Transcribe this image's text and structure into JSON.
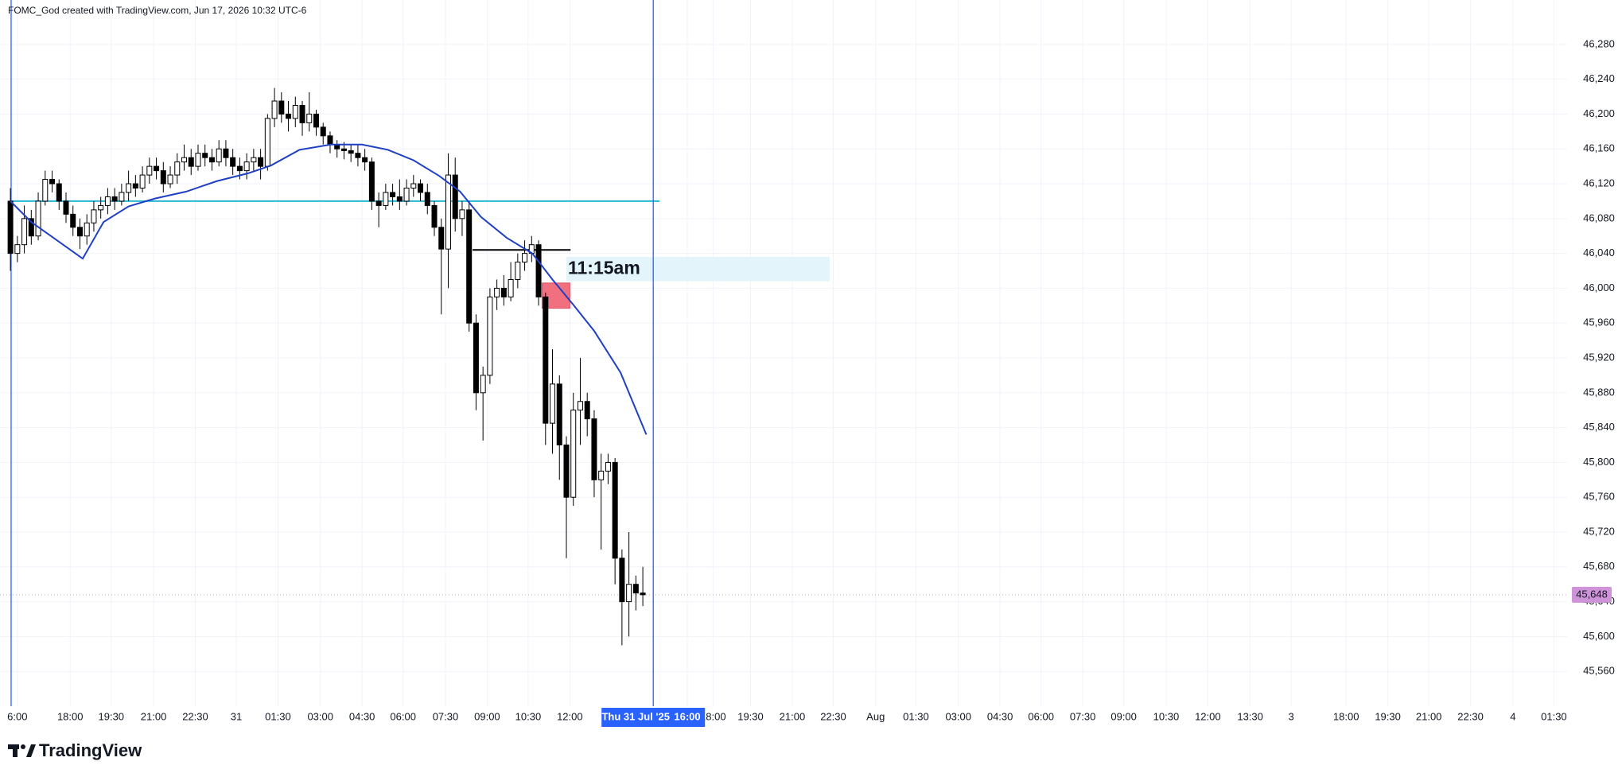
{
  "header": "FOMC_God created with TradingView.com, Jun 17, 2026 10:32 UTC-6",
  "footer": "TradingView",
  "chart_data": {
    "type": "candlestick",
    "xlim": [
      -2.5,
      223
    ],
    "ylim": [
      45520,
      46331
    ],
    "grid": true,
    "up_color": "#ffffff",
    "down_color": "#000000",
    "xticks": [
      {
        "value": 0,
        "label": "6:00"
      },
      {
        "value": 7.6,
        "label": "18:00"
      },
      {
        "value": 13.5,
        "label": "19:30"
      },
      {
        "value": 19.6,
        "label": "21:00"
      },
      {
        "value": 25.6,
        "label": "22:30"
      },
      {
        "value": 31.5,
        "label": "31"
      },
      {
        "value": 37.5,
        "label": "01:30"
      },
      {
        "value": 43.6,
        "label": "03:00"
      },
      {
        "value": 49.6,
        "label": "04:30"
      },
      {
        "value": 55.5,
        "label": "06:00"
      },
      {
        "value": 61.6,
        "label": "07:30"
      },
      {
        "value": 67.6,
        "label": "09:00"
      },
      {
        "value": 73.5,
        "label": "10:30"
      },
      {
        "value": 79.5,
        "label": "12:00"
      },
      {
        "value": 96.4,
        "label": "16:00"
      },
      {
        "value": 100.1,
        "label": "18:00"
      },
      {
        "value": 105.5,
        "label": "19:30"
      },
      {
        "value": 111.5,
        "label": "21:00"
      },
      {
        "value": 117.4,
        "label": "22:30"
      },
      {
        "value": 123.5,
        "label": "Aug"
      },
      {
        "value": 129.3,
        "label": "01:30"
      },
      {
        "value": 135.4,
        "label": "03:00"
      },
      {
        "value": 141.4,
        "label": "04:30"
      },
      {
        "value": 147.3,
        "label": "06:00"
      },
      {
        "value": 153.3,
        "label": "07:30"
      },
      {
        "value": 159.2,
        "label": "09:00"
      },
      {
        "value": 165.3,
        "label": "10:30"
      },
      {
        "value": 171.3,
        "label": "12:00"
      },
      {
        "value": 177.4,
        "label": "13:30"
      },
      {
        "value": 183.3,
        "label": "3"
      },
      {
        "value": 191.2,
        "label": "18:00"
      },
      {
        "value": 197.2,
        "label": "19:30"
      },
      {
        "value": 203.1,
        "label": "21:00"
      },
      {
        "value": 209.1,
        "label": "22:30"
      },
      {
        "value": 215.2,
        "label": "4"
      },
      {
        "value": 221.1,
        "label": "01:30"
      }
    ],
    "yticks": [
      {
        "value": 45560,
        "label": "45,560"
      },
      {
        "value": 45600,
        "label": "45,600"
      },
      {
        "value": 45640,
        "label": "45,640"
      },
      {
        "value": 45680,
        "label": "45,680"
      },
      {
        "value": 45720,
        "label": "45,720"
      },
      {
        "value": 45760,
        "label": "45,760"
      },
      {
        "value": 45800,
        "label": "45,800"
      },
      {
        "value": 45840,
        "label": "45,840"
      },
      {
        "value": 45880,
        "label": "45,880"
      },
      {
        "value": 45920,
        "label": "45,920"
      },
      {
        "value": 45960,
        "label": "45,960"
      },
      {
        "value": 46000,
        "label": "46,000"
      },
      {
        "value": 46040,
        "label": "46,040"
      },
      {
        "value": 46080,
        "label": "46,080"
      },
      {
        "value": 46120,
        "label": "46,120"
      },
      {
        "value": 46160,
        "label": "46,160"
      },
      {
        "value": 46200,
        "label": "46,200"
      },
      {
        "value": 46240,
        "label": "46,240"
      },
      {
        "value": 46280,
        "label": "46,280"
      }
    ],
    "x": [
      -1,
      0,
      1,
      2,
      3,
      4,
      5,
      6,
      7,
      8,
      9,
      10,
      11,
      12,
      13,
      14,
      15,
      16,
      17,
      18,
      19,
      20,
      21,
      22,
      23,
      24,
      25,
      26,
      27,
      28,
      29,
      30,
      31,
      32,
      33,
      34,
      35,
      36,
      37,
      38,
      39,
      40,
      41,
      42,
      43,
      44,
      45,
      46,
      47,
      48,
      49,
      50,
      51,
      52,
      53,
      54,
      55,
      56,
      57,
      58,
      59,
      60,
      61,
      62,
      63,
      64,
      65,
      66,
      67,
      68,
      69,
      70,
      71,
      72,
      73,
      74,
      75,
      76,
      77,
      78,
      79,
      80,
      81,
      82,
      83,
      84,
      85,
      86,
      87,
      88,
      89,
      90
    ],
    "open": [
      46100,
      46040,
      46050,
      46080,
      46060,
      46100,
      46125,
      46120,
      46100,
      46085,
      46070,
      46060,
      46075,
      46090,
      46095,
      46105,
      46100,
      46110,
      46120,
      46115,
      46130,
      46140,
      46135,
      46120,
      46130,
      46145,
      46150,
      46140,
      46155,
      46150,
      46145,
      46160,
      46150,
      46140,
      46135,
      46145,
      46150,
      46140,
      46195,
      46215,
      46200,
      46195,
      46210,
      46190,
      46200,
      46185,
      46175,
      46165,
      46160,
      46158,
      46155,
      46150,
      46145,
      46100,
      46095,
      46110,
      46105,
      46100,
      46115,
      46120,
      46110,
      46095,
      46070,
      46045,
      46130,
      46080,
      46090,
      45960,
      45880,
      45900,
      45990,
      46000,
      45990,
      46010,
      46030,
      46040,
      46050,
      45990,
      45845,
      45890,
      45820,
      45760,
      45860,
      45870,
      45850,
      45780,
      45790,
      45800,
      45690,
      45640,
      45660,
      45650
    ],
    "high": [
      46115,
      46060,
      46095,
      46090,
      46110,
      46135,
      46135,
      46125,
      46110,
      46095,
      46080,
      46085,
      46100,
      46105,
      46115,
      46115,
      46120,
      46135,
      46130,
      46140,
      46150,
      46150,
      46145,
      46140,
      46155,
      46165,
      46160,
      46165,
      46165,
      46160,
      46170,
      46170,
      46160,
      46150,
      46155,
      46160,
      46160,
      46200,
      46230,
      46225,
      46215,
      46220,
      46215,
      46225,
      46205,
      46190,
      46180,
      46170,
      46168,
      46165,
      46165,
      46160,
      46150,
      46110,
      46120,
      46120,
      46125,
      46125,
      46130,
      46125,
      46120,
      46100,
      46080,
      46155,
      46150,
      46100,
      46100,
      45970,
      45910,
      46000,
      46010,
      46015,
      46030,
      46040,
      46055,
      46060,
      46055,
      45995,
      45930,
      45900,
      45830,
      45880,
      45920,
      45880,
      45860,
      45810,
      45810,
      45805,
      45700,
      45720,
      45670,
      45680
    ],
    "low": [
      46020,
      46030,
      46040,
      46050,
      46055,
      46095,
      46110,
      46090,
      46075,
      46060,
      46045,
      46050,
      46065,
      46080,
      46085,
      46090,
      46095,
      46100,
      46105,
      46110,
      46120,
      46125,
      46110,
      46115,
      46120,
      46135,
      46130,
      46135,
      46140,
      46135,
      46140,
      46140,
      46130,
      46125,
      46125,
      46135,
      46125,
      46135,
      46185,
      46190,
      46180,
      46185,
      46175,
      46180,
      46175,
      46165,
      46155,
      46150,
      46148,
      46145,
      46140,
      46135,
      46090,
      46070,
      46090,
      46095,
      46090,
      46095,
      46105,
      46100,
      46085,
      46060,
      45970,
      46000,
      46065,
      46060,
      45950,
      45860,
      45825,
      45890,
      45975,
      45980,
      45985,
      46000,
      46020,
      46030,
      45980,
      45820,
      45810,
      45780,
      45690,
      45750,
      45820,
      45830,
      45760,
      45700,
      45775,
      45660,
      45590,
      45600,
      45630,
      45635
    ],
    "close": [
      46040,
      46050,
      46080,
      46060,
      46100,
      46125,
      46120,
      46100,
      46085,
      46070,
      46060,
      46075,
      46090,
      46095,
      46105,
      46100,
      46110,
      46120,
      46115,
      46130,
      46140,
      46135,
      46120,
      46130,
      46145,
      46150,
      46140,
      46155,
      46150,
      46145,
      46160,
      46150,
      46140,
      46135,
      46145,
      46150,
      46140,
      46195,
      46215,
      46200,
      46195,
      46210,
      46190,
      46200,
      46185,
      46175,
      46165,
      46160,
      46158,
      46155,
      46150,
      46145,
      46100,
      46095,
      46110,
      46105,
      46100,
      46115,
      46120,
      46110,
      46095,
      46070,
      46045,
      46130,
      46080,
      46090,
      45960,
      45880,
      45900,
      45990,
      46000,
      45990,
      46010,
      46030,
      46040,
      46050,
      45990,
      45845,
      45890,
      45820,
      45760,
      45860,
      45870,
      45850,
      45780,
      45790,
      45800,
      45690,
      45640,
      45660,
      45650,
      45648
    ],
    "moving_average": {
      "color": "#1f3fc4",
      "x": [
        -1,
        2,
        5.7,
        9.4,
        12.4,
        16,
        19.8,
        24.3,
        28.7,
        33.2,
        36.5,
        40.6,
        45.1,
        49.6,
        53.3,
        57,
        60.7,
        63.7,
        66.7,
        70.4,
        74.1,
        77,
        80,
        83,
        86.8,
        90.5
      ],
      "values": [
        46100,
        46076,
        46055,
        46034,
        46076,
        46094,
        46103,
        46111,
        46123,
        46132,
        46141,
        46159,
        46165,
        46165,
        46159,
        46147,
        46129,
        46111,
        46082,
        46058,
        46040,
        46010,
        45981,
        45951,
        45903,
        45832
      ]
    },
    "hlines": [
      {
        "value": 46100,
        "x": [
          -1,
          92.4
        ],
        "color": "#26b6d4"
      },
      {
        "value": 46044,
        "x": [
          65.5,
          79.6
        ],
        "color": "#000000"
      }
    ],
    "boxes": [
      {
        "y": [
          46036,
          46008
        ],
        "x": [
          79,
          116.9
        ],
        "color": "#e3f5fb",
        "label": "11:15am"
      },
      {
        "y": [
          46006,
          45977
        ],
        "x": [
          75.5,
          79.5
        ],
        "color": "#f0707f"
      }
    ],
    "vline": {
      "x": -0.9,
      "color": "#2962ff"
    },
    "crosshair": {
      "x": 91.5,
      "label": "Thu 31 Jul '25",
      "color": "#2962ff"
    },
    "last_price": {
      "value": 45648,
      "label": "45,648",
      "color": "#ce93d8"
    }
  }
}
